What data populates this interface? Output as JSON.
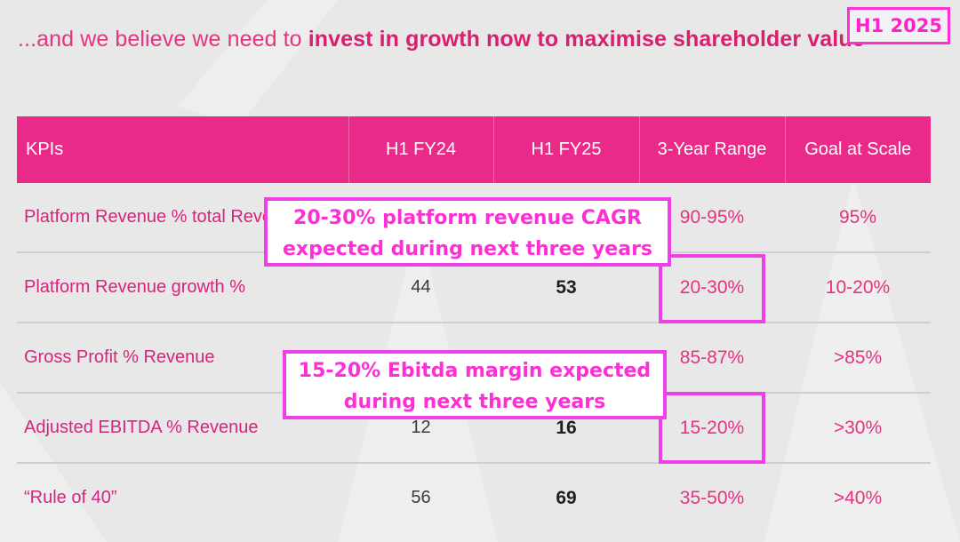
{
  "headline": {
    "lead": "...and we believe we need to ",
    "emphasis": "invest in growth now to maximise shareholder value"
  },
  "corner_tag": "H1 2025",
  "table": {
    "headers": [
      "KPIs",
      "H1 FY24",
      "H1 FY25",
      "3-Year Range",
      "Goal at Scale"
    ],
    "rows": [
      {
        "kpi": "Platform Revenue % total Revenue",
        "h1_fy24": "",
        "h1_fy25": "",
        "range": "90-95%",
        "goal": "95%"
      },
      {
        "kpi": "Platform Revenue growth %",
        "h1_fy24": "44",
        "h1_fy25": "53",
        "range": "20-30%",
        "goal": "10-20%"
      },
      {
        "kpi": "Gross Profit % Revenue",
        "h1_fy24": "",
        "h1_fy25": "",
        "range": "85-87%",
        "goal": ">85%"
      },
      {
        "kpi": "Adjusted EBITDA % Revenue",
        "h1_fy24": "12",
        "h1_fy25": "16",
        "range": "15-20%",
        "goal": ">30%"
      },
      {
        "kpi": "“Rule of 40”",
        "h1_fy24": "56",
        "h1_fy25": "69",
        "range": "35-50%",
        "goal": ">40%"
      }
    ]
  },
  "callouts": {
    "revenue": [
      "20-30% platform revenue CAGR",
      "expected during next three years"
    ],
    "ebitda": [
      "15-20% Ebitda margin expected",
      "during next three years"
    ]
  },
  "colors": {
    "brand_pink": "#ea2a88",
    "annotation_magenta": "#f03fe6",
    "background": "#e9e8e8"
  }
}
